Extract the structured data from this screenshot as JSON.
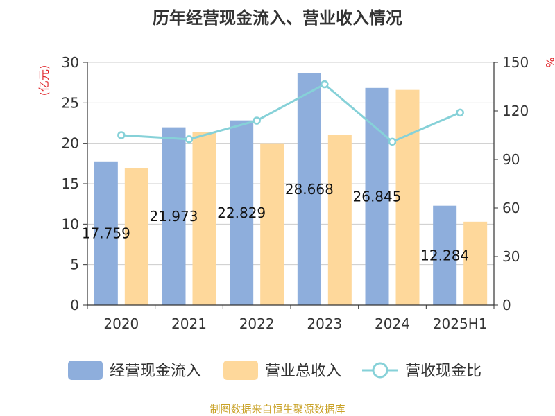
{
  "chart_data": {
    "type": "bar",
    "title": "历年经营现金流入、营业收入情况",
    "y_left_label": "(亿元)",
    "y_right_label": "%",
    "categories": [
      "2020",
      "2021",
      "2022",
      "2023",
      "2024",
      "2025H1"
    ],
    "y_left_range": [
      0,
      30
    ],
    "y_left_ticks": [
      0,
      5,
      10,
      15,
      20,
      25,
      30
    ],
    "y_right_range": [
      0,
      150
    ],
    "y_right_ticks": [
      0,
      30,
      60,
      90,
      120,
      150
    ],
    "grid": true,
    "legend_position": "bottom",
    "series": [
      {
        "name": "经营现金流入",
        "type": "bar",
        "axis": "left",
        "color": "#8eaedc",
        "values": [
          17.759,
          21.973,
          22.829,
          28.668,
          26.845,
          12.284
        ],
        "data_labels": [
          "17.759",
          "21.973",
          "22.829",
          "28.668",
          "26.845",
          "12.284"
        ]
      },
      {
        "name": "营业总收入",
        "type": "bar",
        "axis": "left",
        "color": "#fed89b",
        "values": [
          16.9,
          21.4,
          20.0,
          21.0,
          26.6,
          10.3
        ]
      },
      {
        "name": "营收现金比",
        "type": "line",
        "axis": "right",
        "color": "#86d1d8",
        "values": [
          105,
          102.5,
          114,
          136.5,
          101,
          119
        ]
      }
    ],
    "source_note": "制图数据来自恒生聚源数据库"
  }
}
